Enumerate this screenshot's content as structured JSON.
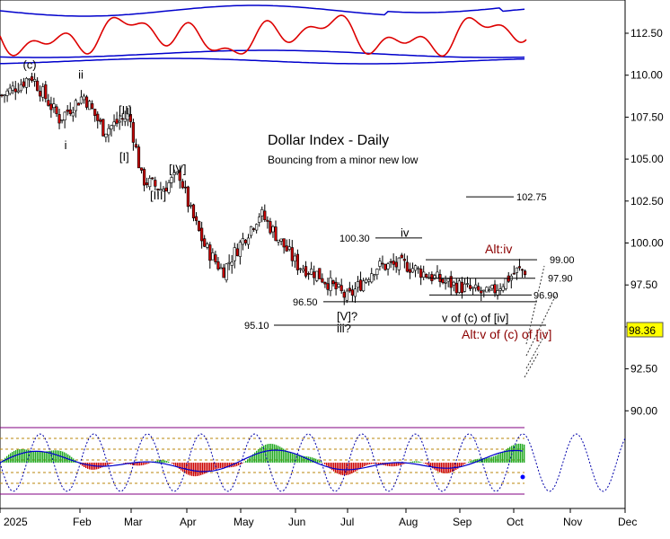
{
  "chart_data": {
    "type": "candlestick",
    "title": "Dollar Index - Daily",
    "subtitle": "Bouncing from a minor new low",
    "y_ticks": [
      90.0,
      92.5,
      95.0,
      97.5,
      100.0,
      102.5,
      105.0,
      107.5,
      110.0,
      112.5
    ],
    "y_tick_labels": [
      "90.00",
      "92.50",
      "95.00",
      "97.50",
      "100.00",
      "102.50",
      "105.00",
      "107.50",
      "110.00",
      "112.50"
    ],
    "ylim": [
      89.6,
      113.9
    ],
    "x_labels": [
      "2025",
      "Feb",
      "Mar",
      "Apr",
      "May",
      "Jun",
      "Jul",
      "Aug",
      "Sep",
      "Oct",
      "Nov",
      "Dec"
    ],
    "last_price": "98.36",
    "last_price_value": 98.36,
    "levels": [
      {
        "label": "102.75",
        "value": 102.75
      },
      {
        "label": "100.30",
        "value": 100.3
      },
      {
        "label": "99.00",
        "value": 99.0
      },
      {
        "label": "97.90",
        "value": 97.9
      },
      {
        "label": "96.90",
        "value": 96.9
      },
      {
        "label": "96.50",
        "value": 96.5
      },
      {
        "label": "95.10",
        "value": 95.1
      }
    ],
    "wave_labels": [
      {
        "text": "(c)",
        "date": "2025-01-13",
        "price": 110.6
      },
      {
        "text": "ii",
        "date": "2025-02-03",
        "price": 110.0
      },
      {
        "text": "i",
        "date": "2025-01-27",
        "price": 105.8
      },
      {
        "text": "[II]",
        "date": "2025-02-28",
        "price": 107.9
      },
      {
        "text": "[I]",
        "date": "2025-02-27",
        "price": 105.1
      },
      {
        "text": "[IV]",
        "date": "2025-03-28",
        "price": 104.4
      },
      {
        "text": "[III]",
        "date": "2025-03-19",
        "price": 102.8
      },
      {
        "text": "iv",
        "date": "2025-08-01",
        "price": 100.6
      },
      {
        "text": "[V]?",
        "date": "2025-07-01",
        "price": 95.6
      },
      {
        "text": "iii?",
        "date": "2025-07-01",
        "price": 94.9
      },
      {
        "text": "Alt:iv",
        "date": "2025-09-24",
        "price": 99.6
      },
      {
        "text": "v of (c) of [iv]",
        "date": "2025-09-15",
        "price": 95.5
      },
      {
        "text": "Alt:v of (c) of [iv]",
        "date": "2025-10-02",
        "price": 94.5
      }
    ],
    "ohlc_close_approx": [
      {
        "date": "2025-01-02",
        "close": 108.8
      },
      {
        "date": "2025-01-10",
        "close": 109.6
      },
      {
        "date": "2025-01-13",
        "close": 110.0
      },
      {
        "date": "2025-01-24",
        "close": 107.4
      },
      {
        "date": "2025-02-03",
        "close": 108.8
      },
      {
        "date": "2025-02-14",
        "close": 106.7
      },
      {
        "date": "2025-02-28",
        "close": 107.6
      },
      {
        "date": "2025-03-07",
        "close": 103.8
      },
      {
        "date": "2025-03-18",
        "close": 103.2
      },
      {
        "date": "2025-03-28",
        "close": 104.1
      },
      {
        "date": "2025-04-03",
        "close": 101.9
      },
      {
        "date": "2025-04-11",
        "close": 99.8
      },
      {
        "date": "2025-04-21",
        "close": 98.3
      },
      {
        "date": "2025-05-12",
        "close": 101.8
      },
      {
        "date": "2025-06-02",
        "close": 98.7
      },
      {
        "date": "2025-06-13",
        "close": 98.2
      },
      {
        "date": "2025-07-01",
        "close": 96.7
      },
      {
        "date": "2025-07-16",
        "close": 98.6
      },
      {
        "date": "2025-08-01",
        "close": 98.7
      },
      {
        "date": "2025-08-22",
        "close": 97.7
      },
      {
        "date": "2025-09-17",
        "close": 96.9
      },
      {
        "date": "2025-10-03",
        "close": 98.36
      }
    ],
    "series": [
      {
        "name": "",
        "type": "candles"
      },
      {
        "name": "",
        "type": "oscillator-red"
      },
      {
        "name": "",
        "type": "band-blue"
      },
      {
        "name": "",
        "type": "histogram"
      },
      {
        "name": "",
        "type": "cycle-projection-dotted"
      }
    ]
  }
}
